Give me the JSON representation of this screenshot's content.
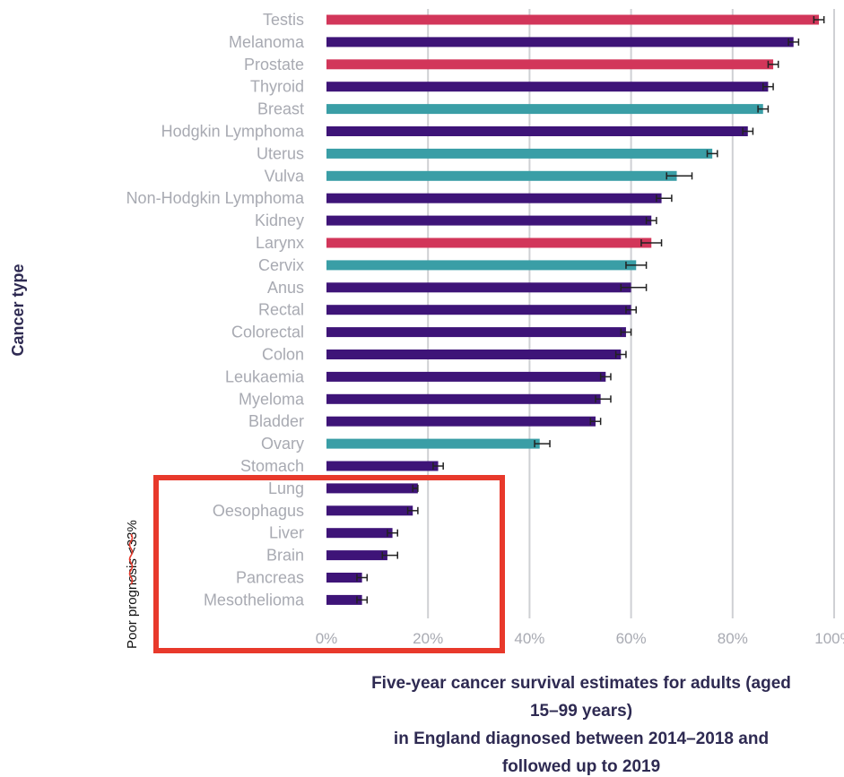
{
  "chart_data": {
    "type": "bar",
    "orientation": "horizontal",
    "ylabel": "Cancer type",
    "xlabel_lines": [
      "Five-year cancer survival estimates for adults (aged",
      "15–99 years)",
      "in England diagnosed between 2014–2018 and",
      "followed up to 2019"
    ],
    "xlim": [
      0,
      100
    ],
    "x_ticks": [
      {
        "value": 0,
        "label": "0%"
      },
      {
        "value": 20,
        "label": "20%"
      },
      {
        "value": 40,
        "label": "40%"
      },
      {
        "value": 60,
        "label": "60%"
      },
      {
        "value": 80,
        "label": "80%"
      },
      {
        "value": 100,
        "label": "100%"
      }
    ],
    "grid": "vertical",
    "colors": {
      "red": "#d2365a",
      "purple": "#3e1478",
      "teal": "#3a9ea6"
    },
    "categories": [
      "Testis",
      "Melanoma",
      "Prostate",
      "Thyroid",
      "Breast",
      "Hodgkin Lymphoma",
      "Uterus",
      "Vulva",
      "Non-Hodgkin Lymphoma",
      "Kidney",
      "Larynx",
      "Cervix",
      "Anus",
      "Rectal",
      "Colorectal",
      "Colon",
      "Leukaemia",
      "Myeloma",
      "Bladder",
      "Ovary",
      "Stomach",
      "Lung",
      "Oesophagus",
      "Liver",
      "Brain",
      "Pancreas",
      "Mesothelioma"
    ],
    "values": [
      97,
      92,
      88,
      87,
      86,
      83,
      76,
      69,
      66,
      64,
      64,
      61,
      60,
      60,
      59,
      58,
      55,
      54,
      53,
      42,
      22,
      18,
      17,
      13,
      12,
      7,
      7
    ],
    "error_low": [
      96,
      91,
      87,
      86,
      85,
      82,
      75,
      67,
      65,
      63,
      62,
      59,
      58,
      59,
      58,
      57,
      54,
      53,
      52,
      41,
      21,
      17,
      16,
      12,
      11,
      6,
      6
    ],
    "error_high": [
      98,
      93,
      89,
      88,
      87,
      84,
      77,
      72,
      68,
      65,
      66,
      63,
      63,
      61,
      60,
      59,
      56,
      56,
      54,
      44,
      23,
      18,
      18,
      14,
      14,
      8,
      8
    ],
    "bar_colors": [
      "red",
      "purple",
      "red",
      "purple",
      "teal",
      "purple",
      "teal",
      "teal",
      "purple",
      "purple",
      "red",
      "teal",
      "purple",
      "purple",
      "purple",
      "purple",
      "purple",
      "purple",
      "purple",
      "teal",
      "purple",
      "purple",
      "purple",
      "purple",
      "purple",
      "purple",
      "purple"
    ],
    "annotations": [
      {
        "text": "Poor prognosis <33%",
        "highlight_color": "#e8392b",
        "applies_to": [
          "Lung",
          "Oesophagus",
          "Liver",
          "Brain",
          "Pancreas",
          "Mesothelioma"
        ]
      }
    ]
  }
}
